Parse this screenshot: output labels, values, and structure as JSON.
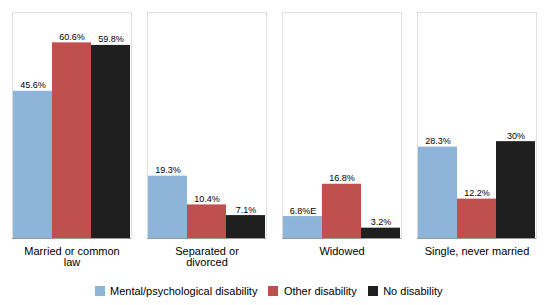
{
  "chart_data": {
    "type": "bar",
    "categories": [
      "Married or common\nlaw",
      "Separated or\ndivorced",
      "Widowed",
      "Single, never married"
    ],
    "series": [
      {
        "name": "Mental/psychological disability",
        "color": "#8DB4D9",
        "values": [
          45.6,
          19.3,
          6.8,
          28.3
        ],
        "value_labels": [
          "45.6%",
          "19.3%",
          "6.8%E",
          "28.3%"
        ]
      },
      {
        "name": "Other disability",
        "color": "#C0504D",
        "values": [
          60.6,
          10.4,
          16.8,
          12.2
        ],
        "value_labels": [
          "60.6%",
          "10.4%",
          "16.8%",
          "12.2%"
        ]
      },
      {
        "name": "No disability",
        "color": "#1F1F1F",
        "values": [
          59.8,
          7.1,
          3.2,
          30.0
        ],
        "value_labels": [
          "59.8%",
          "7.1%",
          "3.2%",
          "30%"
        ]
      }
    ],
    "ylim": [
      0,
      70
    ],
    "yticks": [],
    "data_labels": true,
    "tick_labels": "x",
    "legend": "bottom"
  }
}
